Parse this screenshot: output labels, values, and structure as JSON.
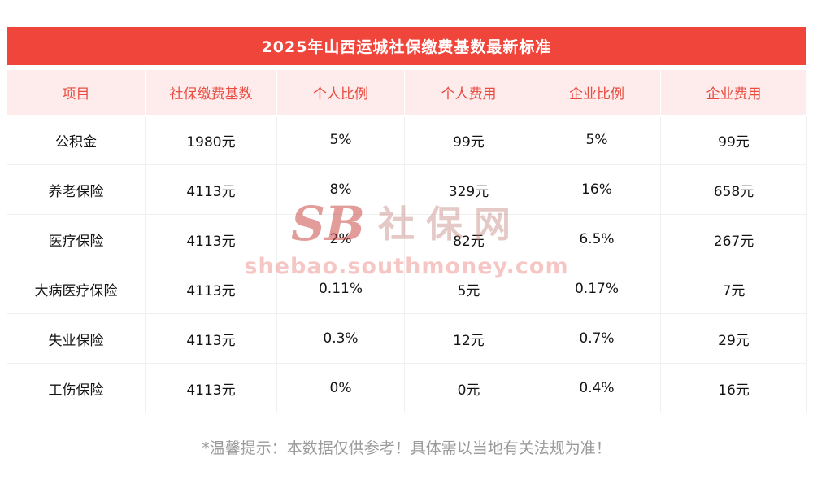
{
  "page": {
    "title": "2025年山西运城社保缴费基数最新标准",
    "footnote": "*温馨提示：本数据仅供参考！具体需以当地有关法规为准！"
  },
  "watermark": {
    "logo_text": "SB",
    "brand": "社保网",
    "url": "shebao.southmoney.com"
  },
  "chart_data": {
    "type": "table",
    "title": "2025年山西运城社保缴费基数最新标准",
    "columns": [
      "项目",
      "社保缴费基数",
      "个人比例",
      "个人费用",
      "企业比例",
      "企业费用"
    ],
    "rows": [
      [
        "公积金",
        "1980元",
        "5%",
        "99元",
        "5%",
        "99元"
      ],
      [
        "养老保险",
        "4113元",
        "8%",
        "329元",
        "16%",
        "658元"
      ],
      [
        "医疗保险",
        "4113元",
        "2%",
        "82元",
        "6.5%",
        "267元"
      ],
      [
        "大病医疗保险",
        "4113元",
        "0.11%",
        "5元",
        "0.17%",
        "7元"
      ],
      [
        "失业保险",
        "4113元",
        "0.3%",
        "12元",
        "0.7%",
        "29元"
      ],
      [
        "工伤保险",
        "4113元",
        "0%",
        "0元",
        "0.4%",
        "16元"
      ]
    ]
  },
  "colors": {
    "banner_bg": "#f0453b",
    "header_bg": "#fdeceb",
    "header_text": "#e94b40",
    "body_text": "#141414",
    "border": "#f0f0f0",
    "footnote_text": "#9b9b9b"
  }
}
